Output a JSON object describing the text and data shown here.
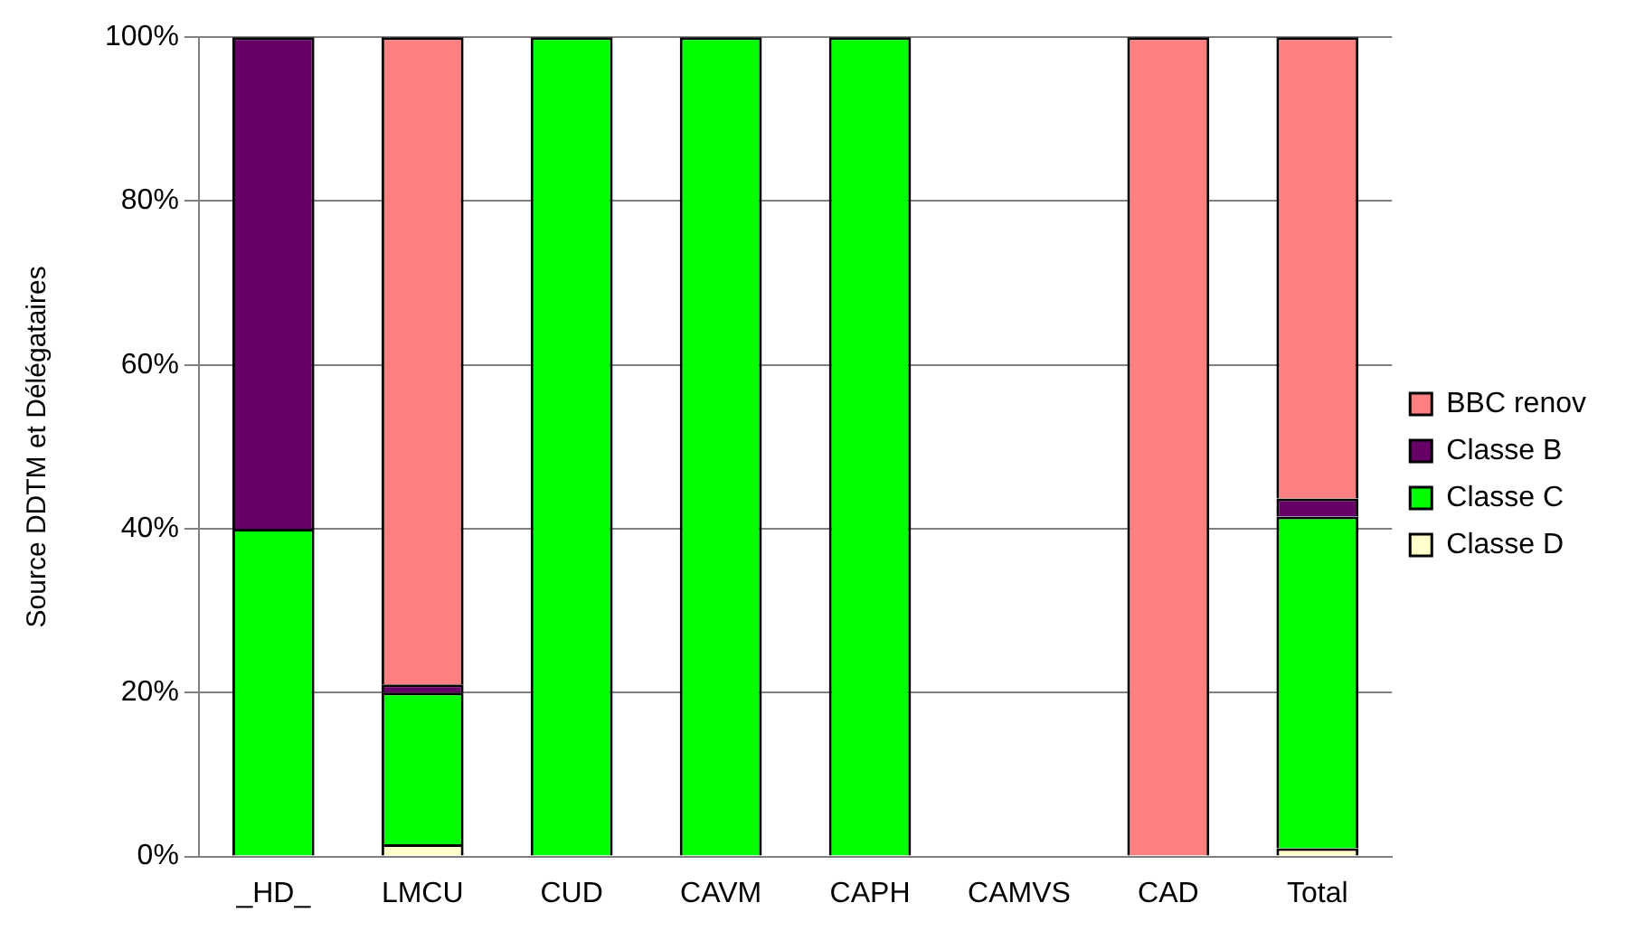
{
  "chart_data": {
    "type": "bar",
    "stacked": true,
    "ylabel": "Source DDTM et Délégataires",
    "categories": [
      "_HD_",
      "LMCU",
      "CUD",
      "CAVM",
      "CAPH",
      "CAMVS",
      "CAD",
      "Total"
    ],
    "series": [
      {
        "name": "Classe D",
        "color": "#ffffcc",
        "values": [
          0,
          1.5,
          0,
          0,
          0,
          0,
          0,
          1
        ]
      },
      {
        "name": "Classe C",
        "color": "#00ff00",
        "values": [
          40,
          18.5,
          100,
          100,
          100,
          0,
          0,
          40.5
        ]
      },
      {
        "name": "Classe B",
        "color": "#660066",
        "values": [
          60,
          1,
          0,
          0,
          0,
          0,
          0,
          2.2
        ]
      },
      {
        "name": "BBC renov",
        "color": "#ff8080",
        "values": [
          0,
          79,
          0,
          0,
          0,
          0,
          100,
          56.3
        ]
      }
    ],
    "ylim": [
      0,
      100
    ],
    "yticks": [
      {
        "value": 0,
        "label": "0%"
      },
      {
        "value": 20,
        "label": "20%"
      },
      {
        "value": 40,
        "label": "40%"
      },
      {
        "value": 60,
        "label": "60%"
      },
      {
        "value": 80,
        "label": "80%"
      },
      {
        "value": 100,
        "label": "100%"
      }
    ],
    "grid": "y",
    "legend": "right"
  }
}
